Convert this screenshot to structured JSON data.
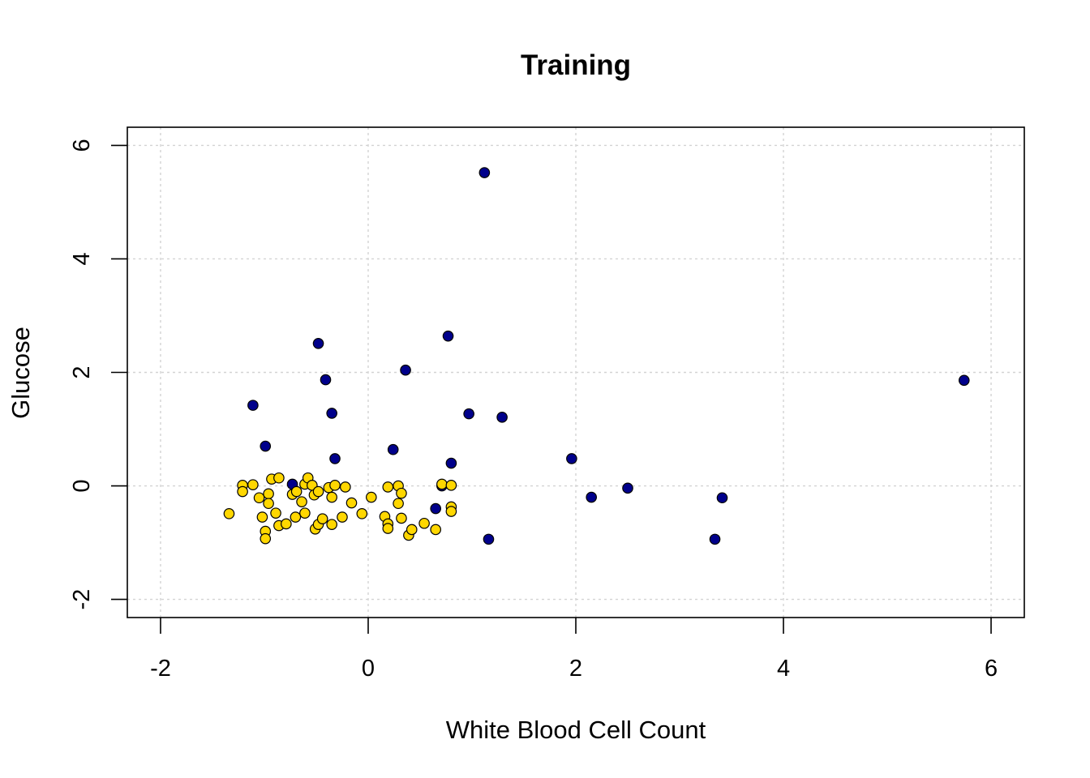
{
  "chart_data": {
    "type": "scatter",
    "title": "Training",
    "xlabel": "White Blood Cell Count",
    "ylabel": "Glucose",
    "xlim": [
      -2.32,
      6.32
    ],
    "ylim": [
      -2.32,
      6.32
    ],
    "xticks": [
      -2,
      0,
      2,
      4,
      6
    ],
    "yticks": [
      -2,
      0,
      2,
      4,
      6
    ],
    "xtick_labels": [
      "-2",
      "0",
      "2",
      "4",
      "6"
    ],
    "ytick_labels": [
      "-2",
      "0",
      "2",
      "4",
      "6"
    ],
    "grid": true,
    "colors": {
      "class1": "#00008B",
      "class2": "#FFD700",
      "outline": "#000000",
      "grid": "#D3D3D3"
    },
    "series": [
      {
        "name": "class1",
        "color": "#00008B",
        "points": [
          [
            1.12,
            5.52
          ],
          [
            5.74,
            1.86
          ],
          [
            0.77,
            2.64
          ],
          [
            -0.48,
            2.51
          ],
          [
            0.36,
            2.04
          ],
          [
            -0.41,
            1.87
          ],
          [
            -1.11,
            1.42
          ],
          [
            0.97,
            1.27
          ],
          [
            -0.35,
            1.28
          ],
          [
            1.29,
            1.21
          ],
          [
            -0.99,
            0.7
          ],
          [
            0.24,
            0.64
          ],
          [
            -0.32,
            0.48
          ],
          [
            1.96,
            0.48
          ],
          [
            0.8,
            0.4
          ],
          [
            -0.73,
            0.03
          ],
          [
            0.71,
            0.0
          ],
          [
            2.5,
            -0.04
          ],
          [
            2.15,
            -0.2
          ],
          [
            3.41,
            -0.21
          ],
          [
            0.65,
            -0.4
          ],
          [
            1.16,
            -0.94
          ],
          [
            3.34,
            -0.94
          ]
        ]
      },
      {
        "name": "class2",
        "color": "#FFD700",
        "points": [
          [
            -1.34,
            -0.49
          ],
          [
            -1.21,
            0.01
          ],
          [
            -1.21,
            -0.1
          ],
          [
            -1.11,
            0.02
          ],
          [
            -1.05,
            -0.21
          ],
          [
            -1.02,
            -0.55
          ],
          [
            -0.99,
            -0.8
          ],
          [
            -0.99,
            -0.93
          ],
          [
            -0.96,
            -0.14
          ],
          [
            -0.96,
            -0.31
          ],
          [
            -0.93,
            0.12
          ],
          [
            -0.89,
            -0.48
          ],
          [
            -0.86,
            0.14
          ],
          [
            -0.86,
            -0.7
          ],
          [
            -0.79,
            -0.67
          ],
          [
            -0.73,
            -0.15
          ],
          [
            -0.7,
            -0.55
          ],
          [
            -0.69,
            -0.1
          ],
          [
            -0.64,
            -0.28
          ],
          [
            -0.61,
            -0.48
          ],
          [
            -0.61,
            0.03
          ],
          [
            -0.58,
            0.14
          ],
          [
            -0.54,
            0.01
          ],
          [
            -0.52,
            -0.16
          ],
          [
            -0.51,
            -0.76
          ],
          [
            -0.48,
            -0.68
          ],
          [
            -0.48,
            -0.1
          ],
          [
            -0.44,
            -0.58
          ],
          [
            -0.38,
            -0.03
          ],
          [
            -0.35,
            -0.68
          ],
          [
            -0.35,
            -0.2
          ],
          [
            -0.32,
            0.01
          ],
          [
            -0.25,
            -0.55
          ],
          [
            -0.22,
            -0.02
          ],
          [
            -0.16,
            -0.3
          ],
          [
            -0.06,
            -0.49
          ],
          [
            0.03,
            -0.2
          ],
          [
            0.16,
            -0.54
          ],
          [
            0.19,
            -0.67
          ],
          [
            0.19,
            -0.75
          ],
          [
            0.19,
            -0.02
          ],
          [
            0.29,
            -0.31
          ],
          [
            0.29,
            0.0
          ],
          [
            0.32,
            -0.13
          ],
          [
            0.32,
            -0.57
          ],
          [
            0.39,
            -0.87
          ],
          [
            0.42,
            -0.77
          ],
          [
            0.54,
            -0.66
          ],
          [
            0.65,
            -0.77
          ],
          [
            0.71,
            0.03
          ],
          [
            0.8,
            0.01
          ],
          [
            0.8,
            -0.37
          ],
          [
            0.8,
            -0.45
          ]
        ]
      }
    ]
  }
}
